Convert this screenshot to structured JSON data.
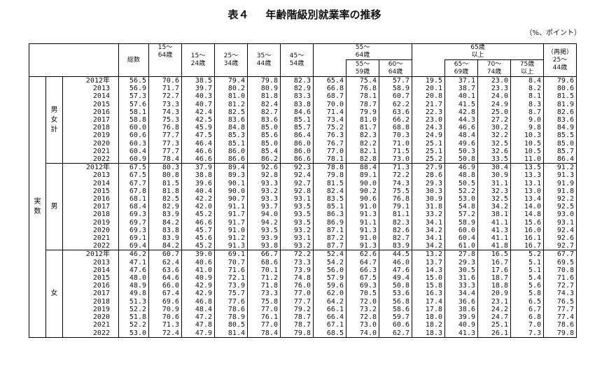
{
  "title": {
    "number": "表４",
    "text": "年齢階級別就業率の推移"
  },
  "unit": "（%、ポイント）",
  "headers": {
    "total": "総数",
    "a15_64": "15～\n64歳",
    "a15_24": "15～\n24歳",
    "a25_34": "25～\n34歳",
    "a35_44": "35～\n44歳",
    "a45_54": "45～\n54歳",
    "a55_64": "55～\n64歳",
    "a55_59": "55～\n59歳",
    "a60_64": "60～\n64歳",
    "a65plus": "65歳\n以上",
    "a65_69": "65～\n69歳",
    "a70_74": "70～\n74歳",
    "a75plus": "75歳\n以上",
    "a25_44_re": "（再掲）\n25～\n44歳"
  },
  "outer_label": "実\n数",
  "groups": [
    {
      "label": "男\n女\n計",
      "rows": [
        [
          "2012年",
          "56.5",
          "70.6",
          "38.5",
          "79.4",
          "79.8",
          "82.3",
          "65.4",
          "75.4",
          "57.7",
          "19.5",
          "37.1",
          "23.0",
          "8.4",
          "79.6"
        ],
        [
          "2013",
          "56.9",
          "71.7",
          "39.7",
          "80.2",
          "80.9",
          "82.9",
          "66.8",
          "76.8",
          "58.9",
          "20.1",
          "38.7",
          "23.3",
          "8.2",
          "80.6"
        ],
        [
          "2014",
          "57.3",
          "72.7",
          "40.3",
          "81.0",
          "81.8",
          "83.3",
          "68.7",
          "78.1",
          "60.7",
          "20.8",
          "40.1",
          "24.0",
          "8.1",
          "81.5"
        ],
        [
          "2015",
          "57.6",
          "73.3",
          "40.7",
          "81.2",
          "82.4",
          "83.8",
          "70.0",
          "78.7",
          "62.2",
          "21.7",
          "41.5",
          "24.9",
          "8.3",
          "81.9"
        ],
        [
          "2016",
          "58.1",
          "74.3",
          "42.4",
          "82.5",
          "82.7",
          "84.6",
          "71.4",
          "79.9",
          "63.6",
          "22.3",
          "42.8",
          "25.0",
          "8.7",
          "82.6"
        ],
        [
          "2017",
          "58.8",
          "75.3",
          "42.5",
          "83.6",
          "83.6",
          "85.1",
          "73.4",
          "81.0",
          "66.2",
          "23.0",
          "44.3",
          "27.2",
          "9.0",
          "83.6"
        ],
        [
          "2018",
          "60.0",
          "76.8",
          "45.9",
          "84.8",
          "85.0",
          "85.7",
          "75.2",
          "81.7",
          "68.8",
          "24.3",
          "46.6",
          "30.2",
          "9.8",
          "84.9"
        ],
        [
          "2019",
          "60.6",
          "77.7",
          "47.5",
          "85.3",
          "85.6",
          "86.4",
          "76.3",
          "82.3",
          "70.3",
          "24.9",
          "48.4",
          "32.2",
          "10.3",
          "85.5"
        ],
        [
          "2020",
          "60.3",
          "77.3",
          "46.4",
          "85.1",
          "85.0",
          "86.0",
          "76.7",
          "82.2",
          "71.0",
          "25.1",
          "49.6",
          "32.5",
          "10.5",
          "85.0"
        ],
        [
          "2021",
          "60.4",
          "77.7",
          "46.6",
          "86.0",
          "85.4",
          "86.0",
          "77.0",
          "82.1",
          "71.5",
          "25.1",
          "50.3",
          "32.6",
          "10.5",
          "85.7"
        ],
        [
          "2022",
          "60.9",
          "78.4",
          "46.6",
          "86.6",
          "86.2",
          "86.6",
          "78.1",
          "82.8",
          "73.0",
          "25.2",
          "50.8",
          "33.5",
          "11.0",
          "86.4"
        ]
      ]
    },
    {
      "label": "男",
      "rows": [
        [
          "2012年",
          "67.5",
          "80.3",
          "37.9",
          "89.4",
          "92.6",
          "92.3",
          "78.8",
          "88.4",
          "71.3",
          "27.9",
          "46.9",
          "30.4",
          "13.5",
          "91.2"
        ],
        [
          "2013",
          "67.5",
          "80.8",
          "38.8",
          "89.3",
          "92.8",
          "92.4",
          "79.8",
          "89.1",
          "72.2",
          "28.6",
          "48.8",
          "30.9",
          "13.3",
          "91.3"
        ],
        [
          "2014",
          "67.7",
          "81.5",
          "39.6",
          "90.1",
          "93.3",
          "92.7",
          "81.5",
          "90.0",
          "74.3",
          "29.3",
          "50.5",
          "31.1",
          "13.1",
          "91.9"
        ],
        [
          "2015",
          "67.8",
          "81.8",
          "40.4",
          "90.0",
          "93.2",
          "92.8",
          "82.4",
          "90.2",
          "75.5",
          "30.3",
          "52.2",
          "32.3",
          "13.0",
          "91.8"
        ],
        [
          "2016",
          "68.1",
          "82.5",
          "42.2",
          "90.7",
          "93.3",
          "93.1",
          "83.5",
          "90.6",
          "76.8",
          "30.9",
          "53.0",
          "32.5",
          "13.4",
          "92.2"
        ],
        [
          "2017",
          "68.4",
          "82.9",
          "42.0",
          "91.1",
          "93.7",
          "93.5",
          "85.1",
          "91.0",
          "79.1",
          "31.8",
          "54.8",
          "34.2",
          "14.0",
          "92.5"
        ],
        [
          "2018",
          "69.3",
          "83.9",
          "45.2",
          "91.7",
          "94.0",
          "93.5",
          "86.3",
          "91.3",
          "81.1",
          "33.2",
          "57.2",
          "38.1",
          "14.8",
          "93.0"
        ],
        [
          "2019",
          "69.7",
          "84.2",
          "46.6",
          "91.7",
          "94.2",
          "93.5",
          "86.9",
          "91.1",
          "82.3",
          "34.1",
          "58.9",
          "41.1",
          "15.6",
          "93.1"
        ],
        [
          "2020",
          "69.3",
          "83.8",
          "45.7",
          "91.0",
          "93.5",
          "93.2",
          "87.1",
          "91.3",
          "82.6",
          "34.2",
          "60.0",
          "41.3",
          "16.0",
          "92.4"
        ],
        [
          "2021",
          "69.1",
          "83.9",
          "45.6",
          "91.2",
          "93.9",
          "93.1",
          "87.2",
          "91.0",
          "82.7",
          "34.1",
          "60.4",
          "41.1",
          "16.1",
          "92.6"
        ],
        [
          "2022",
          "69.4",
          "84.2",
          "45.2",
          "91.3",
          "93.8",
          "93.2",
          "87.7",
          "91.3",
          "83.9",
          "34.2",
          "61.0",
          "41.8",
          "16.7",
          "92.7"
        ]
      ]
    },
    {
      "label": "女",
      "rows": [
        [
          "2012年",
          "46.2",
          "60.7",
          "39.0",
          "69.1",
          "66.7",
          "72.2",
          "52.4",
          "62.6",
          "44.5",
          "13.2",
          "27.8",
          "16.5",
          "5.2",
          "67.7"
        ],
        [
          "2013",
          "47.1",
          "62.4",
          "40.6",
          "70.7",
          "68.6",
          "73.3",
          "54.2",
          "64.7",
          "46.0",
          "13.7",
          "29.3",
          "16.7",
          "5.1",
          "69.5"
        ],
        [
          "2014",
          "47.6",
          "63.6",
          "41.0",
          "71.6",
          "70.1",
          "73.9",
          "56.0",
          "66.3",
          "47.6",
          "14.3",
          "30.5",
          "17.6",
          "5.1",
          "70.8"
        ],
        [
          "2015",
          "48.0",
          "64.6",
          "40.9",
          "72.1",
          "71.2",
          "74.8",
          "57.9",
          "67.5",
          "49.4",
          "15.0",
          "31.6",
          "18.7",
          "5.4",
          "71.6"
        ],
        [
          "2016",
          "48.9",
          "66.0",
          "42.9",
          "73.9",
          "71.8",
          "76.0",
          "59.6",
          "69.3",
          "50.8",
          "15.8",
          "33.3",
          "18.8",
          "5.6",
          "72.7"
        ],
        [
          "2017",
          "49.8",
          "67.4",
          "42.9",
          "75.7",
          "73.3",
          "77.0",
          "62.0",
          "70.5",
          "53.6",
          "16.3",
          "34.4",
          "20.9",
          "5.8",
          "74.3"
        ],
        [
          "2018",
          "51.3",
          "69.6",
          "46.8",
          "77.6",
          "75.8",
          "77.7",
          "64.2",
          "72.0",
          "56.8",
          "17.4",
          "36.6",
          "23.1",
          "6.5",
          "76.5"
        ],
        [
          "2019",
          "52.2",
          "70.9",
          "48.4",
          "78.6",
          "77.0",
          "79.2",
          "66.1",
          "73.2",
          "58.6",
          "17.8",
          "38.6",
          "24.2",
          "6.7",
          "77.7"
        ],
        [
          "2020",
          "51.8",
          "70.6",
          "47.2",
          "78.9",
          "76.1",
          "78.7",
          "66.4",
          "72.8",
          "59.7",
          "18.0",
          "39.9",
          "24.7",
          "6.8",
          "77.4"
        ],
        [
          "2021",
          "52.2",
          "71.3",
          "47.8",
          "80.5",
          "77.0",
          "78.7",
          "67.1",
          "73.0",
          "60.6",
          "18.2",
          "40.9",
          "25.1",
          "7.0",
          "78.6"
        ],
        [
          "2022",
          "53.0",
          "72.4",
          "47.9",
          "81.4",
          "78.4",
          "79.8",
          "68.5",
          "74.0",
          "62.7",
          "18.3",
          "41.3",
          "26.1",
          "7.3",
          "79.8"
        ]
      ]
    }
  ]
}
